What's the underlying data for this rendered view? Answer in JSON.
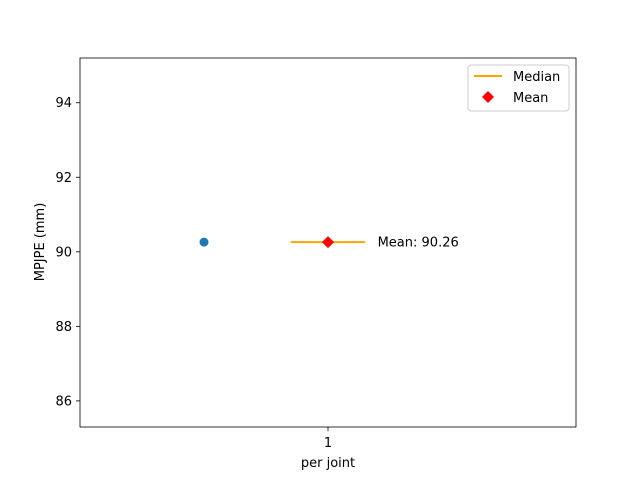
{
  "chart_data": {
    "type": "scatter",
    "categories": [
      "1"
    ],
    "xlabel": "per joint",
    "ylabel": "MPJPE (mm)",
    "xlim": [
      0.5,
      1.5
    ],
    "ylim": [
      85.3,
      95.2
    ],
    "yticks": [
      86,
      88,
      90,
      92,
      94
    ],
    "grid": false,
    "legend_position": "top-right",
    "points": [
      {
        "x": 0.75,
        "y": 90.26
      }
    ],
    "median": {
      "x": 1,
      "y": 90.26,
      "halfwidth": 0.075
    },
    "mean": {
      "x": 1,
      "y": 90.26
    },
    "annotations": [
      {
        "text": "Mean: 90.26",
        "x": 1.1,
        "y": 90.26
      }
    ],
    "legend": [
      {
        "label": "Median",
        "marker": "line",
        "color": "#ffa500"
      },
      {
        "label": "Mean",
        "marker": "diamond",
        "color": "#ff0000"
      }
    ],
    "colors": {
      "points": "#1f77b4",
      "median": "#ffa500",
      "mean": "#ff0000"
    }
  }
}
